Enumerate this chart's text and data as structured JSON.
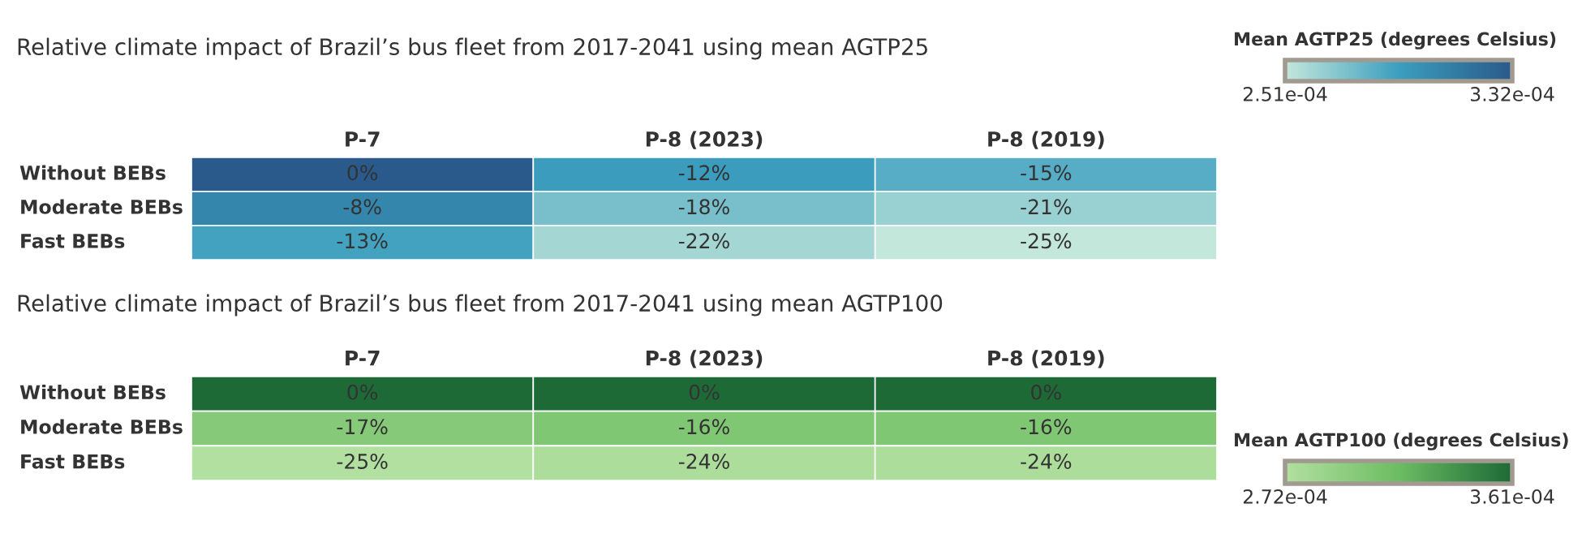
{
  "chart_data": [
    {
      "type": "heatmap",
      "title": "Relative climate impact of Brazil’s bus fleet from 2017-2041 using mean AGTP25",
      "clabel": "Mean AGTP25 (degrees Celsius)",
      "categories": [
        "P-7",
        "P-8 (2023)",
        "P-8 (2019)"
      ],
      "y_categories": [
        "Without BEBs",
        "Moderate BEBs",
        "Fast BEBs"
      ],
      "cells": [
        [
          0,
          -12,
          -15
        ],
        [
          -8,
          -18,
          -21
        ],
        [
          -13,
          -22,
          -25
        ]
      ],
      "cell_labels": [
        [
          "0%",
          "-12%",
          "-15%"
        ],
        [
          "-8%",
          "-18%",
          "-21%"
        ],
        [
          "-13%",
          "-22%",
          "-25%"
        ]
      ],
      "colors": [
        "#c4e7db",
        "#3c9fbf",
        "#2a5a8b"
      ],
      "annotations": [
        "2.51e-04",
        "3.32e-04"
      ]
    },
    {
      "type": "heatmap",
      "title": "Relative climate impact of Brazil’s bus fleet from 2017-2041 using mean AGTP100",
      "clabel": "Mean AGTP100 (degrees Celsius)",
      "categories": [
        "P-7",
        "P-8 (2023)",
        "P-8 (2019)"
      ],
      "y_categories": [
        "Without BEBs",
        "Moderate BEBs",
        "Fast BEBs"
      ],
      "cells": [
        [
          0,
          0,
          0
        ],
        [
          -17,
          -16,
          -16
        ],
        [
          -25,
          -24,
          -24
        ]
      ],
      "cell_labels": [
        [
          "0%",
          "0%",
          "0%"
        ],
        [
          "-17%",
          "-16%",
          "-16%"
        ],
        [
          "-25%",
          "-24%",
          "-24%"
        ]
      ],
      "colors": [
        "#b2e0a0",
        "#6dbd63",
        "#1d6a37"
      ],
      "annotations": [
        "2.72e-04",
        "3.61e-04"
      ]
    }
  ]
}
